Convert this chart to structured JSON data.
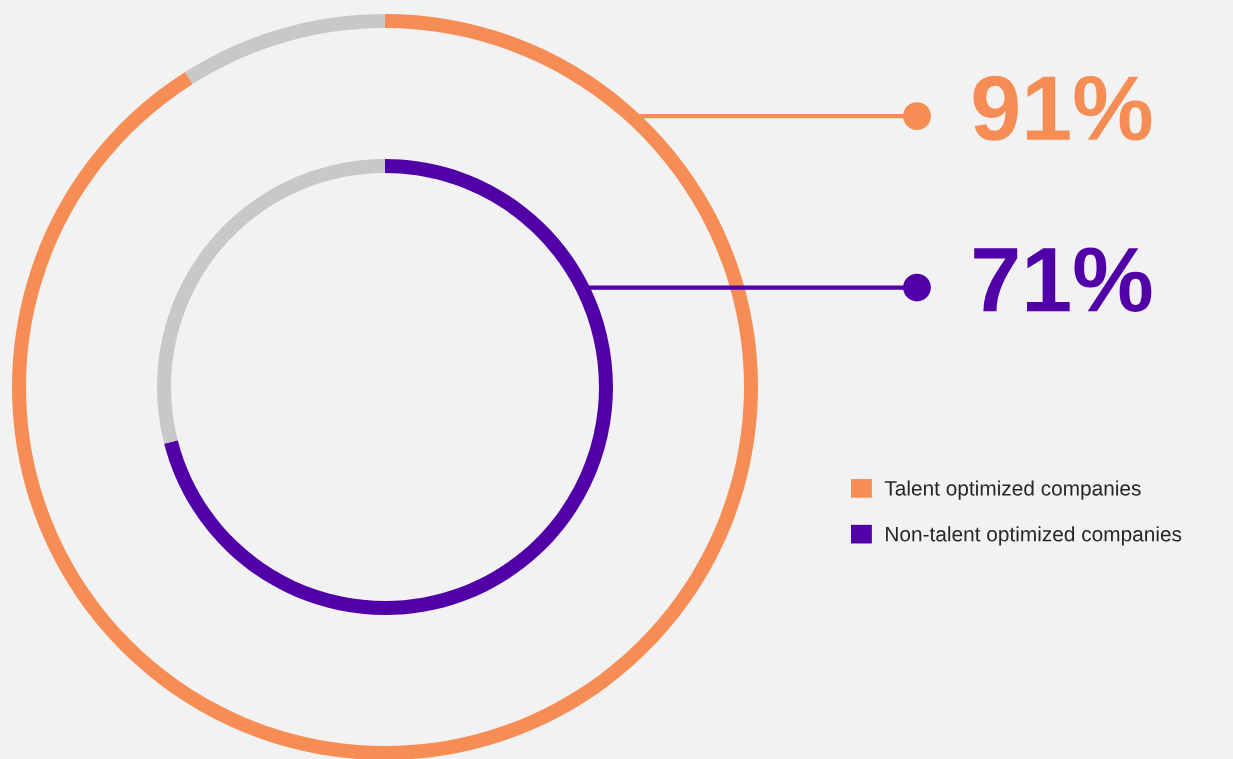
{
  "chart_data": {
    "type": "donut",
    "categories": [
      null,
      null
    ],
    "series": [
      {
        "name": "Talent optimized companies",
        "color": "#f68d55",
        "values": [
          91,
          9
        ],
        "colors": [
          "#f68d55",
          "#c8c8c8"
        ],
        "value_labels": [
          "91%",
          null
        ]
      },
      {
        "name": "Non-talent optimized companies",
        "color": "#5100a8",
        "values": [
          71,
          29
        ],
        "colors": [
          "#5100a8",
          "#c8c8c8"
        ],
        "value_labels": [
          "71%",
          null
        ]
      }
    ],
    "legend": "right"
  }
}
